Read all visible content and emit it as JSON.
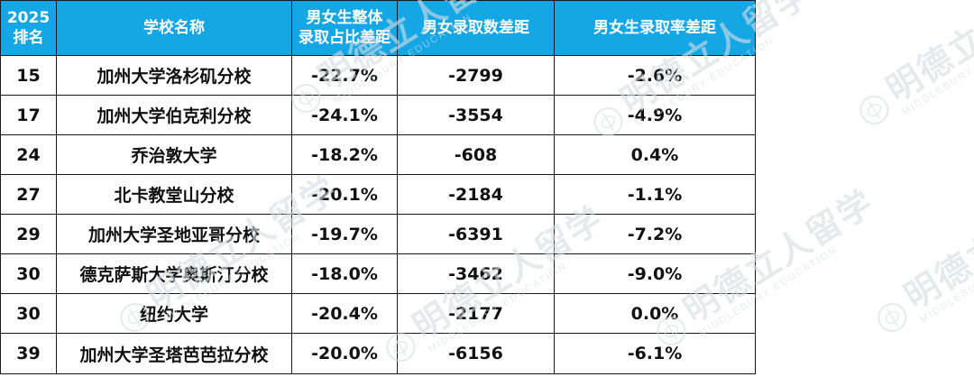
{
  "table": {
    "headers": {
      "rank_line1": "2025",
      "rank_line2": "排名",
      "school": "学校名称",
      "gender_gap_line1": "男女生整体",
      "gender_gap_line2": "录取占比差距",
      "count_gap": "男女录取数差距",
      "rate_gap": "男女生录取率差距"
    },
    "rows": [
      {
        "rank": "15",
        "school": "加州大学洛杉矶分校",
        "share_gap": "-22.7%",
        "count_gap": "-2799",
        "rate_gap": "-2.6%"
      },
      {
        "rank": "17",
        "school": "加州大学伯克利分校",
        "share_gap": "-24.1%",
        "count_gap": "-3554",
        "rate_gap": "-4.9%"
      },
      {
        "rank": "24",
        "school": "乔治敦大学",
        "share_gap": "-18.2%",
        "count_gap": "-608",
        "rate_gap": "0.4%"
      },
      {
        "rank": "27",
        "school": "北卡教堂山分校",
        "share_gap": "-20.1%",
        "count_gap": "-2184",
        "rate_gap": "-1.1%"
      },
      {
        "rank": "29",
        "school": "加州大学圣地亚哥分校",
        "share_gap": "-19.7%",
        "count_gap": "-6391",
        "rate_gap": "-7.2%"
      },
      {
        "rank": "30",
        "school": "德克萨斯大学奥斯汀分校",
        "share_gap": "-18.0%",
        "count_gap": "-3462",
        "rate_gap": "-9.0%"
      },
      {
        "rank": "30",
        "school": "纽约大学",
        "share_gap": "-20.4%",
        "count_gap": "-2177",
        "rate_gap": "0.0%"
      },
      {
        "rank": "39",
        "school": "加州大学圣塔芭芭拉分校",
        "share_gap": "-20.0%",
        "count_gap": "-6156",
        "rate_gap": "-6.1%"
      }
    ]
  },
  "watermark": {
    "main": "明德立人留学",
    "sub": "MIDDLEBURY EDUCATION",
    "color": "#d8dde1"
  },
  "colors": {
    "header_bg": "#15a6e6",
    "header_text": "#ffffff",
    "border": "#1a1a1a"
  }
}
